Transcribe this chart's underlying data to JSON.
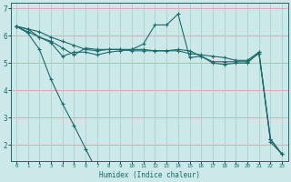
{
  "xlabel": "Humidex (Indice chaleur)",
  "bg_color": "#cce8e8",
  "line_color": "#1a6b6b",
  "xlim": [
    -0.5,
    23.5
  ],
  "ylim": [
    1.4,
    7.2
  ],
  "xticks": [
    0,
    1,
    2,
    3,
    4,
    5,
    6,
    7,
    8,
    9,
    10,
    11,
    12,
    13,
    14,
    15,
    16,
    17,
    18,
    19,
    20,
    21,
    22,
    23
  ],
  "yticks": [
    2,
    3,
    4,
    5,
    6,
    7
  ],
  "hgrid_color": "#e0a0a0",
  "vgrid_color": "#aacece",
  "series": [
    [
      6.35,
      6.25,
      6.15,
      5.95,
      5.8,
      5.65,
      5.5,
      5.45,
      5.5,
      5.5,
      5.5,
      5.5,
      5.45,
      5.45,
      5.45,
      5.35,
      5.3,
      5.25,
      5.2,
      5.1,
      5.1,
      5.4,
      2.2,
      1.65
    ],
    [
      6.35,
      6.15,
      5.95,
      5.8,
      5.55,
      5.3,
      5.55,
      5.5,
      5.5,
      5.5,
      5.45,
      5.45,
      5.45,
      5.45,
      5.5,
      5.45,
      5.25,
      5.0,
      4.95,
      5.0,
      5.0,
      5.4,
      2.1,
      1.65
    ],
    [
      6.35,
      6.25,
      5.95,
      5.75,
      5.25,
      5.4,
      5.4,
      5.3,
      5.4,
      5.45,
      5.5,
      5.7,
      6.4,
      6.4,
      6.8,
      5.2,
      5.25,
      5.05,
      5.05,
      5.05,
      5.05,
      5.35,
      2.2,
      1.65
    ],
    [
      6.35,
      6.1,
      5.5,
      4.4,
      3.5,
      2.7,
      1.85,
      1.0,
      null,
      null,
      null,
      null,
      null,
      null,
      null,
      null,
      null,
      null,
      null,
      null,
      null,
      null,
      null,
      null
    ]
  ],
  "xlabel_fontsize": 5.5,
  "tick_fontsize_x": 4.2,
  "tick_fontsize_y": 5.5
}
